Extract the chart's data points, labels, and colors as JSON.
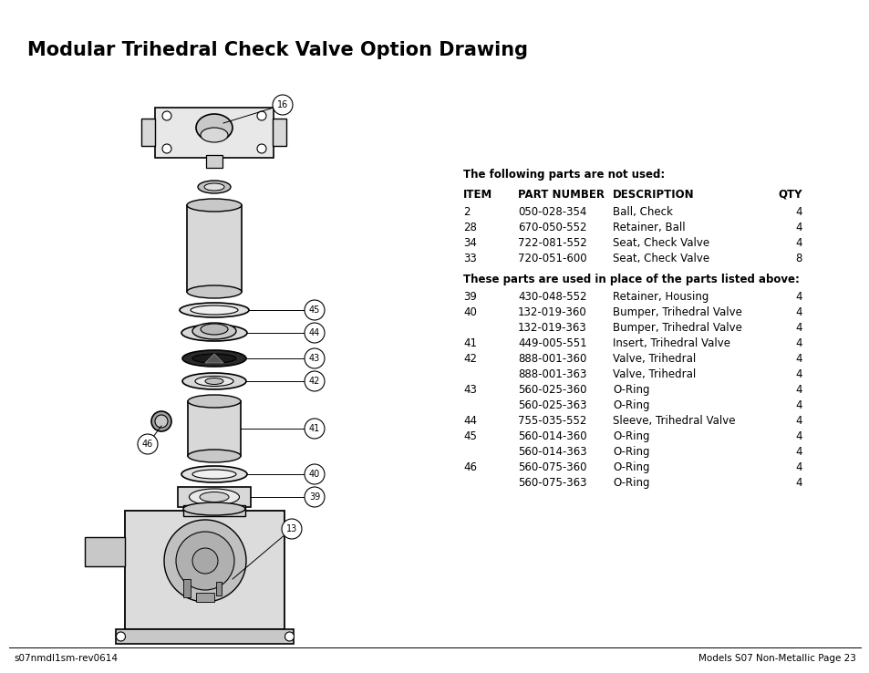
{
  "title": "Modular Trihedral Check Valve Option Drawing",
  "title_fontsize": 15,
  "background_color": "#ffffff",
  "text_color": "#000000",
  "footer_left": "s07nmdl1sm-rev0614",
  "footer_right": "Models S07 Non-Metallic Page 23",
  "footer_fontsize": 7.5,
  "not_used_header": "The following parts are not used:",
  "table_header": [
    "ITEM",
    "PART NUMBER",
    "DESCRIPTION",
    "QTY"
  ],
  "not_used_rows": [
    [
      "2",
      "050-028-354",
      "Ball, Check",
      "4"
    ],
    [
      "28",
      "670-050-552",
      "Retainer, Ball",
      "4"
    ],
    [
      "34",
      "722-081-552",
      "Seat, Check Valve",
      "4"
    ],
    [
      "33",
      "720-051-600",
      "Seat, Check Valve",
      "8"
    ]
  ],
  "used_header": "These parts are used in place of the parts listed above:",
  "used_rows": [
    [
      "39",
      "430-048-552",
      "Retainer, Housing",
      "4"
    ],
    [
      "40",
      "132-019-360",
      "Bumper, Trihedral Valve",
      "4"
    ],
    [
      "",
      "132-019-363",
      "Bumper, Trihedral Valve",
      "4"
    ],
    [
      "41",
      "449-005-551",
      "Insert, Trihedral Valve",
      "4"
    ],
    [
      "42",
      "888-001-360",
      "Valve, Trihedral",
      "4"
    ],
    [
      "",
      "888-001-363",
      "Valve, Trihedral",
      "4"
    ],
    [
      "43",
      "560-025-360",
      "O-Ring",
      "4"
    ],
    [
      "",
      "560-025-363",
      "O-Ring",
      "4"
    ],
    [
      "44",
      "755-035-552",
      "Sleeve, Trihedral Valve",
      "4"
    ],
    [
      "45",
      "560-014-360",
      "O-Ring",
      "4"
    ],
    [
      "",
      "560-014-363",
      "O-Ring",
      "4"
    ],
    [
      "46",
      "560-075-360",
      "O-Ring",
      "4"
    ],
    [
      "",
      "560-075-363",
      "O-Ring",
      "4"
    ]
  ],
  "font_family": "DejaVu Sans",
  "body_fontsize": 8.5
}
